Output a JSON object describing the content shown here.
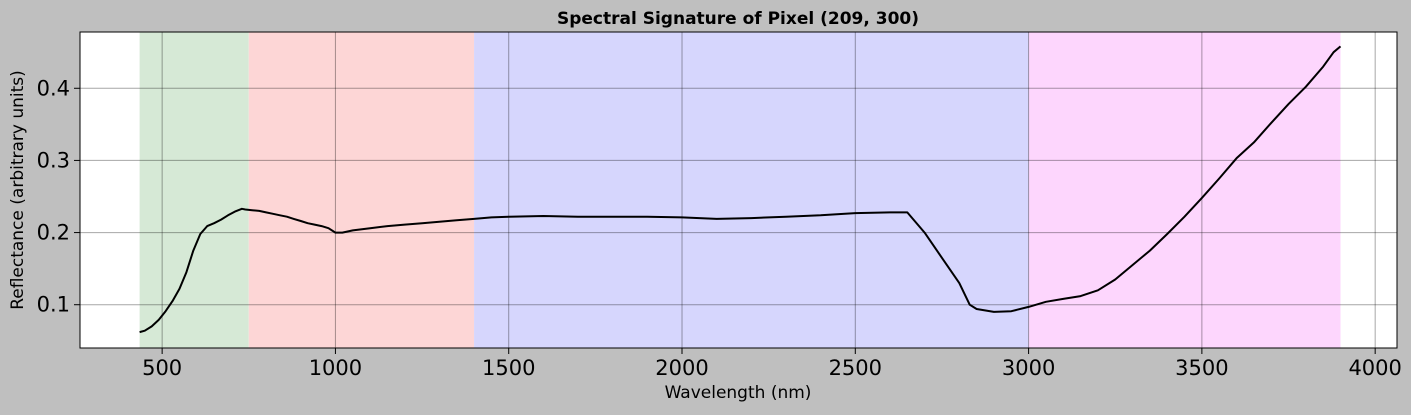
{
  "chart_data": {
    "type": "line",
    "title": "Spectral Signature of Pixel (209, 300)",
    "xlabel": "Wavelength (nm)",
    "ylabel": "Reflectance (arbitrary units)",
    "xlim": [
      263,
      4063
    ],
    "ylim": [
      0.04,
      0.478
    ],
    "xticks": [
      500,
      1000,
      1500,
      2000,
      2500,
      3000,
      3500,
      4000
    ],
    "yticks": [
      0.1,
      0.2,
      0.3,
      0.4
    ],
    "xtick_labels": [
      "500",
      "1000",
      "1500",
      "2000",
      "2500",
      "3000",
      "3500",
      "4000"
    ],
    "ytick_labels": [
      "0.1",
      "0.2",
      "0.3",
      "0.4"
    ],
    "grid": true,
    "line_color": "#000000",
    "regions": [
      {
        "range": [
          435,
          750
        ],
        "color": "#d6e9d6"
      },
      {
        "range": [
          750,
          1400
        ],
        "color": "#fdd6d6"
      },
      {
        "range": [
          1400,
          3000
        ],
        "color": "#d6d6fd"
      },
      {
        "range": [
          3000,
          3900
        ],
        "color": "#fdd6fd"
      }
    ],
    "series": [
      {
        "x": [
          435,
          450,
          470,
          490,
          510,
          530,
          550,
          570,
          590,
          610,
          630,
          650,
          670,
          690,
          710,
          730,
          740,
          760,
          780,
          800,
          820,
          840,
          860,
          880,
          900,
          920,
          940,
          960,
          980,
          1000,
          1020,
          1050,
          1100,
          1150,
          1200,
          1250,
          1300,
          1350,
          1400,
          1450,
          1500,
          1600,
          1700,
          1800,
          1900,
          2000,
          2100,
          2200,
          2300,
          2400,
          2500,
          2600,
          2650,
          2700,
          2750,
          2800,
          2830,
          2850,
          2900,
          2950,
          3000,
          3050,
          3100,
          3150,
          3200,
          3250,
          3300,
          3350,
          3400,
          3450,
          3500,
          3550,
          3600,
          3650,
          3700,
          3750,
          3800,
          3850,
          3880,
          3900
        ],
        "y": [
          0.062,
          0.064,
          0.07,
          0.079,
          0.091,
          0.105,
          0.122,
          0.145,
          0.175,
          0.198,
          0.209,
          0.213,
          0.218,
          0.224,
          0.229,
          0.233,
          0.232,
          0.231,
          0.23,
          0.228,
          0.226,
          0.224,
          0.222,
          0.219,
          0.216,
          0.213,
          0.211,
          0.209,
          0.206,
          0.2,
          0.2,
          0.203,
          0.206,
          0.209,
          0.211,
          0.213,
          0.215,
          0.217,
          0.219,
          0.221,
          0.222,
          0.223,
          0.222,
          0.222,
          0.222,
          0.221,
          0.219,
          0.22,
          0.222,
          0.224,
          0.227,
          0.228,
          0.228,
          0.2,
          0.165,
          0.13,
          0.1,
          0.094,
          0.09,
          0.091,
          0.097,
          0.104,
          0.108,
          0.112,
          0.12,
          0.135,
          0.155,
          0.175,
          0.198,
          0.222,
          0.248,
          0.275,
          0.303,
          0.325,
          0.352,
          0.378,
          0.402,
          0.43,
          0.45,
          0.458
        ]
      }
    ]
  }
}
